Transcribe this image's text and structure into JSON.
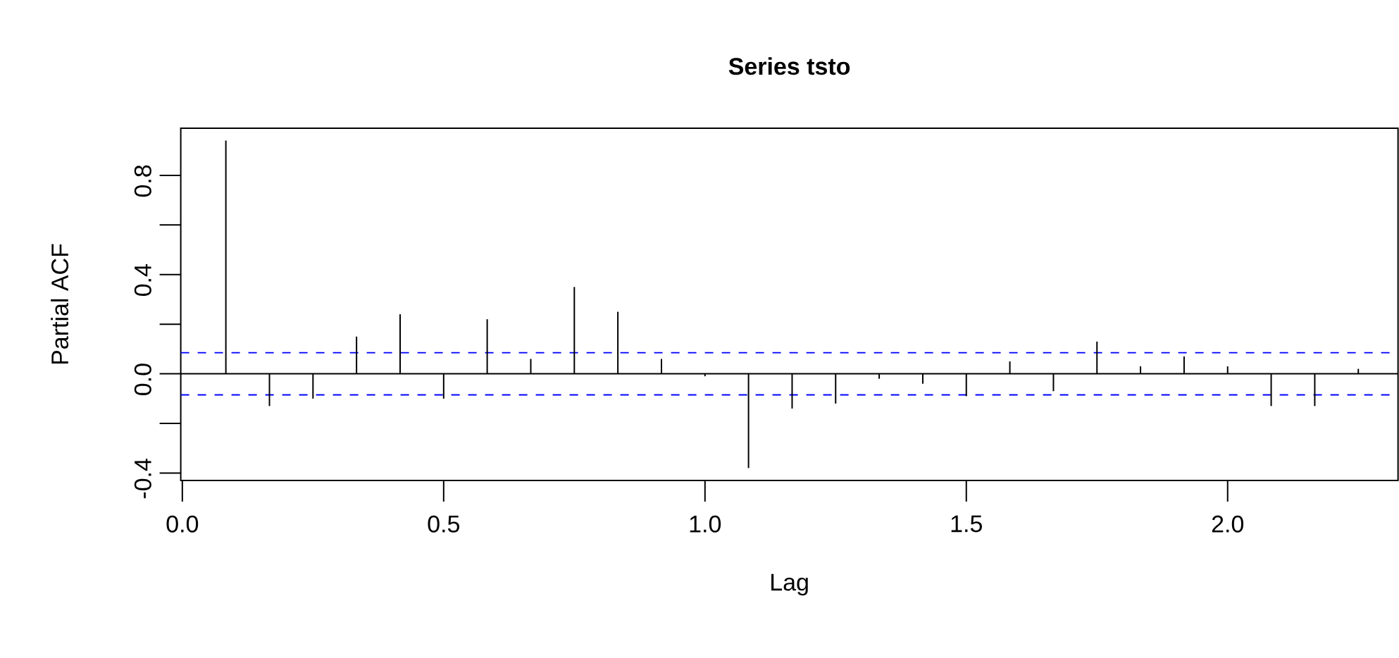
{
  "chart_data": {
    "type": "bar",
    "title": "**Series  tsto**",
    "xlabel": "Lag",
    "ylabel": "Partial ACF",
    "x": [
      0.0833,
      0.1667,
      0.25,
      0.3333,
      0.4167,
      0.5,
      0.5833,
      0.6667,
      0.75,
      0.8333,
      0.9167,
      1.0,
      1.0833,
      1.1667,
      1.25,
      1.3333,
      1.4167,
      1.5,
      1.5833,
      1.6667,
      1.75,
      1.8333,
      1.9167,
      2.0,
      2.0833,
      2.1667,
      2.25
    ],
    "series": [
      {
        "color": "#000000",
        "values": [
          0.94,
          -0.13,
          -0.1,
          0.15,
          0.24,
          -0.1,
          0.22,
          0.06,
          0.35,
          0.25,
          0.06,
          -0.01,
          -0.38,
          -0.14,
          -0.12,
          -0.02,
          -0.04,
          -0.09,
          0.05,
          -0.07,
          0.13,
          0.03,
          0.07,
          0.03,
          -0.13,
          -0.13,
          0.02
        ]
      }
    ],
    "xlim": [
      -0.003,
      2.326
    ],
    "ylim": [
      -0.43,
      0.99
    ],
    "xticks": [
      {
        "value": 0,
        "label": "0.0"
      },
      0.5,
      {
        "value": 1,
        "label": "1.0"
      },
      1.5,
      {
        "value": 2,
        "label": "2.0"
      }
    ],
    "yticks": [
      {
        "value": -0.4,
        "label": "-0.4"
      },
      {
        "value": -0.2,
        "label": null
      },
      {
        "value": 0,
        "label": "0.0"
      },
      {
        "value": 0.2,
        "label": null
      },
      0.4,
      {
        "value": 0.6,
        "label": null
      },
      0.8
    ],
    "ref_lines": [
      {
        "axis": "y",
        "value": 0,
        "color": "#000000",
        "line_style": "solid"
      },
      {
        "axis": "y",
        "value": 0.085,
        "color": "#0000ff",
        "line_style": "dashed"
      },
      {
        "axis": "y",
        "value": -0.085,
        "color": "#0000ff",
        "line_style": "dashed"
      }
    ]
  }
}
